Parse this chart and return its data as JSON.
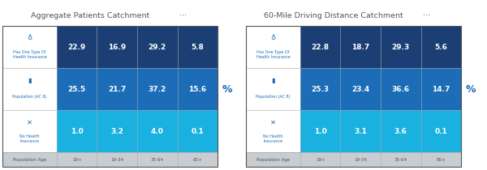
{
  "panel1_title": "Aggregate Patients Catchment",
  "panel2_title": "60-Mile Driving Distance Catchment",
  "dots": "···",
  "age_labels": [
    "19+",
    "19-34",
    "35-64",
    "65+"
  ],
  "row_labels": [
    "Has One Type Of\nHealth Insurance",
    "Population (AC 8)",
    "No Health\nInsurance"
  ],
  "row_label_header": "Population Age",
  "panel1_data": [
    [
      22.9,
      16.9,
      29.2,
      5.8
    ],
    [
      25.5,
      21.7,
      37.2,
      15.6
    ],
    [
      1.0,
      3.2,
      4.0,
      0.1
    ]
  ],
  "panel2_data": [
    [
      22.8,
      18.7,
      29.3,
      5.6
    ],
    [
      25.3,
      23.4,
      36.6,
      14.7
    ],
    [
      1.0,
      3.1,
      3.6,
      0.1
    ]
  ],
  "row_colors": [
    "#1b3f75",
    "#1c6cb7",
    "#1ab0e0"
  ],
  "label_col_bg": "#ffffff",
  "header_row_color": "#c8cdd2",
  "title_color": "#555555",
  "percent_color": "#1c6cb7",
  "cell_text_color": "#ffffff",
  "background_color": "#ffffff",
  "icon_color": "#1c6cb7",
  "label_text_color": "#1c6cb7",
  "header_text_color": "#555555",
  "outer_border_color": "#555555",
  "divider_color": "#aaaaaa"
}
